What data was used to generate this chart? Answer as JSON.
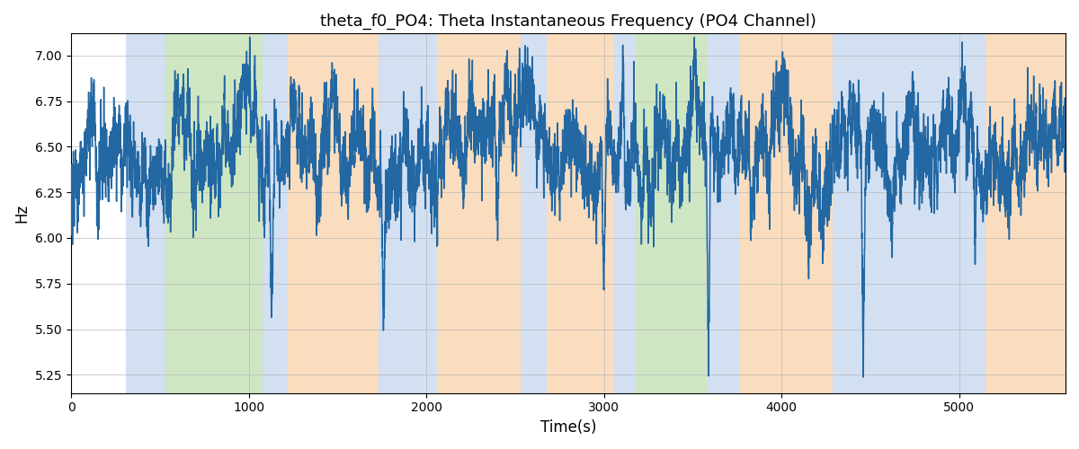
{
  "title": "theta_f0_PO4: Theta Instantaneous Frequency (PO4 Channel)",
  "xlabel": "Time(s)",
  "ylabel": "Hz",
  "line_color": "#2367a3",
  "line_width": 1.1,
  "background_color": "#ffffff",
  "ylim": [
    5.15,
    7.12
  ],
  "xlim": [
    0,
    5600
  ],
  "yticks": [
    5.25,
    5.5,
    5.75,
    6.0,
    6.25,
    6.5,
    6.75,
    7.0
  ],
  "grid_color": "#b0b0b0",
  "grid_alpha": 0.6,
  "regions": [
    {
      "start": 310,
      "end": 530,
      "color": "#adc8e8",
      "alpha": 0.55
    },
    {
      "start": 530,
      "end": 1080,
      "color": "#96c97a",
      "alpha": 0.45
    },
    {
      "start": 1080,
      "end": 1220,
      "color": "#adc8e8",
      "alpha": 0.55
    },
    {
      "start": 1220,
      "end": 1730,
      "color": "#f5c28a",
      "alpha": 0.55
    },
    {
      "start": 1730,
      "end": 2060,
      "color": "#adc8e8",
      "alpha": 0.55
    },
    {
      "start": 2060,
      "end": 2530,
      "color": "#f5c28a",
      "alpha": 0.55
    },
    {
      "start": 2530,
      "end": 2680,
      "color": "#adc8e8",
      "alpha": 0.55
    },
    {
      "start": 2680,
      "end": 3060,
      "color": "#f5c28a",
      "alpha": 0.55
    },
    {
      "start": 3060,
      "end": 3180,
      "color": "#adc8e8",
      "alpha": 0.55
    },
    {
      "start": 3180,
      "end": 3580,
      "color": "#96c97a",
      "alpha": 0.45
    },
    {
      "start": 3580,
      "end": 3760,
      "color": "#adc8e8",
      "alpha": 0.55
    },
    {
      "start": 3760,
      "end": 4290,
      "color": "#f5c28a",
      "alpha": 0.55
    },
    {
      "start": 4290,
      "end": 4980,
      "color": "#adc8e8",
      "alpha": 0.55
    },
    {
      "start": 4980,
      "end": 5150,
      "color": "#adc8e8",
      "alpha": 0.55
    },
    {
      "start": 5150,
      "end": 5600,
      "color": "#f5c28a",
      "alpha": 0.55
    }
  ]
}
